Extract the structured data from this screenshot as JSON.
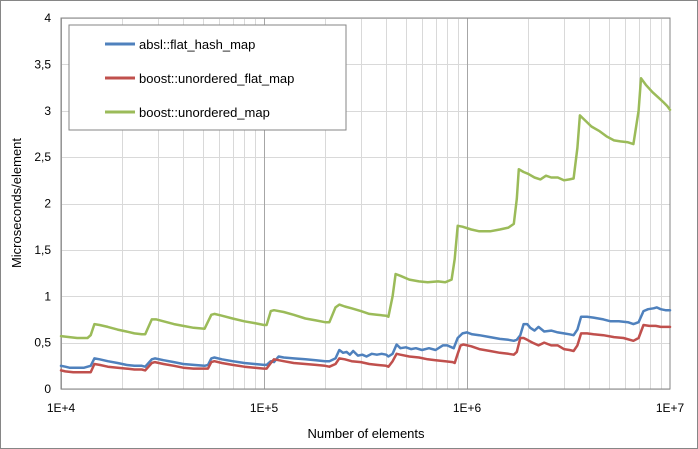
{
  "chart_data": {
    "type": "line",
    "title": "",
    "xlabel": "Number of elements",
    "ylabel": "Microseconds/element",
    "x_scale": "log",
    "xlim": [
      10000,
      10000000
    ],
    "ylim": [
      0,
      4
    ],
    "x_tick_labels": [
      "1E+4",
      "1E+5",
      "1E+6",
      "1E+7"
    ],
    "y_tick_labels": [
      "0",
      "0,5",
      "1",
      "1,5",
      "2",
      "2,5",
      "3",
      "3,5",
      "4"
    ],
    "grid": true,
    "legend_position": "top-left",
    "series": [
      {
        "name": "absl::flat_hash_map",
        "color": "#4f81bd",
        "points": [
          [
            10000,
            0.25
          ],
          [
            10500,
            0.24
          ],
          [
            11000,
            0.23
          ],
          [
            12000,
            0.23
          ],
          [
            13000,
            0.23
          ],
          [
            14000,
            0.25
          ],
          [
            14600,
            0.33
          ],
          [
            15500,
            0.32
          ],
          [
            17000,
            0.3
          ],
          [
            19000,
            0.28
          ],
          [
            21000,
            0.26
          ],
          [
            23000,
            0.25
          ],
          [
            25000,
            0.25
          ],
          [
            26000,
            0.24
          ],
          [
            28000,
            0.32
          ],
          [
            29000,
            0.33
          ],
          [
            32000,
            0.31
          ],
          [
            36000,
            0.29
          ],
          [
            40000,
            0.27
          ],
          [
            45000,
            0.26
          ],
          [
            51000,
            0.25
          ],
          [
            53000,
            0.26
          ],
          [
            55000,
            0.33
          ],
          [
            57000,
            0.34
          ],
          [
            62000,
            0.32
          ],
          [
            70000,
            0.3
          ],
          [
            80000,
            0.28
          ],
          [
            90000,
            0.27
          ],
          [
            100000,
            0.26
          ],
          [
            103000,
            0.26
          ],
          [
            108000,
            0.3
          ],
          [
            112000,
            0.29
          ],
          [
            118000,
            0.35
          ],
          [
            125000,
            0.34
          ],
          [
            140000,
            0.33
          ],
          [
            160000,
            0.32
          ],
          [
            180000,
            0.31
          ],
          [
            200000,
            0.3
          ],
          [
            210000,
            0.3
          ],
          [
            225000,
            0.33
          ],
          [
            235000,
            0.42
          ],
          [
            245000,
            0.39
          ],
          [
            255000,
            0.4
          ],
          [
            265000,
            0.37
          ],
          [
            275000,
            0.41
          ],
          [
            290000,
            0.36
          ],
          [
            305000,
            0.37
          ],
          [
            320000,
            0.35
          ],
          [
            340000,
            0.38
          ],
          [
            360000,
            0.37
          ],
          [
            380000,
            0.38
          ],
          [
            400000,
            0.37
          ],
          [
            410000,
            0.35
          ],
          [
            430000,
            0.38
          ],
          [
            450000,
            0.48
          ],
          [
            470000,
            0.44
          ],
          [
            500000,
            0.45
          ],
          [
            530000,
            0.43
          ],
          [
            560000,
            0.44
          ],
          [
            600000,
            0.42
          ],
          [
            650000,
            0.44
          ],
          [
            700000,
            0.42
          ],
          [
            760000,
            0.47
          ],
          [
            800000,
            0.47
          ],
          [
            840000,
            0.45
          ],
          [
            860000,
            0.44
          ],
          [
            900000,
            0.55
          ],
          [
            950000,
            0.6
          ],
          [
            1000000,
            0.61
          ],
          [
            1060000,
            0.59
          ],
          [
            1150000,
            0.58
          ],
          [
            1300000,
            0.56
          ],
          [
            1450000,
            0.54
          ],
          [
            1600000,
            0.53
          ],
          [
            1700000,
            0.52
          ],
          [
            1760000,
            0.53
          ],
          [
            1830000,
            0.58
          ],
          [
            1900000,
            0.7
          ],
          [
            1980000,
            0.7
          ],
          [
            2050000,
            0.66
          ],
          [
            2150000,
            0.63
          ],
          [
            2250000,
            0.67
          ],
          [
            2400000,
            0.62
          ],
          [
            2600000,
            0.63
          ],
          [
            2800000,
            0.61
          ],
          [
            3000000,
            0.6
          ],
          [
            3200000,
            0.59
          ],
          [
            3350000,
            0.58
          ],
          [
            3500000,
            0.64
          ],
          [
            3650000,
            0.78
          ],
          [
            3900000,
            0.78
          ],
          [
            4200000,
            0.77
          ],
          [
            4700000,
            0.75
          ],
          [
            5100000,
            0.73
          ],
          [
            5600000,
            0.73
          ],
          [
            6200000,
            0.72
          ],
          [
            6600000,
            0.7
          ],
          [
            7000000,
            0.72
          ],
          [
            7400000,
            0.84
          ],
          [
            7800000,
            0.86
          ],
          [
            8300000,
            0.87
          ],
          [
            8600000,
            0.88
          ],
          [
            9000000,
            0.86
          ],
          [
            9500000,
            0.85
          ],
          [
            10000000,
            0.85
          ]
        ]
      },
      {
        "name": "boost::unordered_flat_map",
        "color": "#c0504d",
        "points": [
          [
            10000,
            0.2
          ],
          [
            10500,
            0.19
          ],
          [
            11500,
            0.18
          ],
          [
            12500,
            0.18
          ],
          [
            14000,
            0.18
          ],
          [
            14600,
            0.27
          ],
          [
            15500,
            0.26
          ],
          [
            17000,
            0.24
          ],
          [
            19000,
            0.23
          ],
          [
            21000,
            0.22
          ],
          [
            23000,
            0.21
          ],
          [
            25000,
            0.21
          ],
          [
            26000,
            0.2
          ],
          [
            28000,
            0.28
          ],
          [
            29000,
            0.29
          ],
          [
            32000,
            0.27
          ],
          [
            36000,
            0.25
          ],
          [
            40000,
            0.23
          ],
          [
            45000,
            0.22
          ],
          [
            51000,
            0.22
          ],
          [
            53000,
            0.22
          ],
          [
            55000,
            0.29
          ],
          [
            57000,
            0.3
          ],
          [
            62000,
            0.28
          ],
          [
            70000,
            0.26
          ],
          [
            80000,
            0.24
          ],
          [
            90000,
            0.23
          ],
          [
            100000,
            0.22
          ],
          [
            103000,
            0.22
          ],
          [
            108000,
            0.28
          ],
          [
            112000,
            0.32
          ],
          [
            118000,
            0.31
          ],
          [
            125000,
            0.3
          ],
          [
            140000,
            0.28
          ],
          [
            160000,
            0.27
          ],
          [
            180000,
            0.26
          ],
          [
            200000,
            0.25
          ],
          [
            210000,
            0.24
          ],
          [
            225000,
            0.27
          ],
          [
            235000,
            0.33
          ],
          [
            250000,
            0.32
          ],
          [
            270000,
            0.3
          ],
          [
            300000,
            0.29
          ],
          [
            330000,
            0.27
          ],
          [
            360000,
            0.26
          ],
          [
            400000,
            0.25
          ],
          [
            410000,
            0.24
          ],
          [
            430000,
            0.3
          ],
          [
            450000,
            0.38
          ],
          [
            470000,
            0.37
          ],
          [
            520000,
            0.35
          ],
          [
            580000,
            0.34
          ],
          [
            640000,
            0.32
          ],
          [
            700000,
            0.31
          ],
          [
            780000,
            0.3
          ],
          [
            850000,
            0.29
          ],
          [
            870000,
            0.28
          ],
          [
            900000,
            0.38
          ],
          [
            930000,
            0.47
          ],
          [
            960000,
            0.48
          ],
          [
            1050000,
            0.46
          ],
          [
            1150000,
            0.43
          ],
          [
            1300000,
            0.41
          ],
          [
            1450000,
            0.39
          ],
          [
            1600000,
            0.38
          ],
          [
            1700000,
            0.37
          ],
          [
            1760000,
            0.4
          ],
          [
            1830000,
            0.55
          ],
          [
            1900000,
            0.55
          ],
          [
            1980000,
            0.53
          ],
          [
            2100000,
            0.5
          ],
          [
            2250000,
            0.47
          ],
          [
            2400000,
            0.5
          ],
          [
            2600000,
            0.47
          ],
          [
            2800000,
            0.47
          ],
          [
            3000000,
            0.43
          ],
          [
            3200000,
            0.42
          ],
          [
            3350000,
            0.41
          ],
          [
            3500000,
            0.47
          ],
          [
            3650000,
            0.6
          ],
          [
            3900000,
            0.6
          ],
          [
            4200000,
            0.59
          ],
          [
            4700000,
            0.58
          ],
          [
            5300000,
            0.56
          ],
          [
            5900000,
            0.55
          ],
          [
            6600000,
            0.52
          ],
          [
            7000000,
            0.55
          ],
          [
            7400000,
            0.69
          ],
          [
            7900000,
            0.68
          ],
          [
            8500000,
            0.68
          ],
          [
            9000000,
            0.67
          ],
          [
            9500000,
            0.67
          ],
          [
            10000000,
            0.67
          ]
        ]
      },
      {
        "name": "boost::unordered_map",
        "color": "#9bbb59",
        "points": [
          [
            10000,
            0.57
          ],
          [
            11000,
            0.56
          ],
          [
            12000,
            0.55
          ],
          [
            13500,
            0.55
          ],
          [
            14000,
            0.58
          ],
          [
            14600,
            0.7
          ],
          [
            15500,
            0.69
          ],
          [
            17000,
            0.67
          ],
          [
            19000,
            0.64
          ],
          [
            21000,
            0.62
          ],
          [
            23000,
            0.6
          ],
          [
            25000,
            0.59
          ],
          [
            26000,
            0.59
          ],
          [
            28000,
            0.75
          ],
          [
            29500,
            0.75
          ],
          [
            32000,
            0.73
          ],
          [
            36000,
            0.7
          ],
          [
            40000,
            0.68
          ],
          [
            45000,
            0.66
          ],
          [
            51000,
            0.65
          ],
          [
            55000,
            0.8
          ],
          [
            57000,
            0.81
          ],
          [
            62000,
            0.79
          ],
          [
            70000,
            0.76
          ],
          [
            80000,
            0.73
          ],
          [
            90000,
            0.71
          ],
          [
            100000,
            0.69
          ],
          [
            103000,
            0.69
          ],
          [
            108000,
            0.84
          ],
          [
            112000,
            0.85
          ],
          [
            125000,
            0.83
          ],
          [
            140000,
            0.8
          ],
          [
            160000,
            0.76
          ],
          [
            180000,
            0.74
          ],
          [
            200000,
            0.72
          ],
          [
            210000,
            0.72
          ],
          [
            225000,
            0.88
          ],
          [
            235000,
            0.91
          ],
          [
            250000,
            0.89
          ],
          [
            270000,
            0.87
          ],
          [
            300000,
            0.84
          ],
          [
            330000,
            0.81
          ],
          [
            360000,
            0.8
          ],
          [
            400000,
            0.79
          ],
          [
            410000,
            0.78
          ],
          [
            430000,
            1.0
          ],
          [
            445000,
            1.24
          ],
          [
            470000,
            1.22
          ],
          [
            520000,
            1.18
          ],
          [
            580000,
            1.16
          ],
          [
            640000,
            1.15
          ],
          [
            720000,
            1.16
          ],
          [
            780000,
            1.15
          ],
          [
            840000,
            1.18
          ],
          [
            870000,
            1.4
          ],
          [
            900000,
            1.76
          ],
          [
            950000,
            1.75
          ],
          [
            1050000,
            1.72
          ],
          [
            1150000,
            1.7
          ],
          [
            1300000,
            1.7
          ],
          [
            1450000,
            1.72
          ],
          [
            1600000,
            1.74
          ],
          [
            1700000,
            1.78
          ],
          [
            1760000,
            2.05
          ],
          [
            1800000,
            2.37
          ],
          [
            1900000,
            2.34
          ],
          [
            2000000,
            2.32
          ],
          [
            2150000,
            2.28
          ],
          [
            2300000,
            2.26
          ],
          [
            2450000,
            2.3
          ],
          [
            2600000,
            2.28
          ],
          [
            2800000,
            2.28
          ],
          [
            3000000,
            2.25
          ],
          [
            3200000,
            2.26
          ],
          [
            3350000,
            2.27
          ],
          [
            3500000,
            2.6
          ],
          [
            3600000,
            2.95
          ],
          [
            3800000,
            2.9
          ],
          [
            4100000,
            2.83
          ],
          [
            4500000,
            2.78
          ],
          [
            4900000,
            2.72
          ],
          [
            5300000,
            2.68
          ],
          [
            5700000,
            2.67
          ],
          [
            6200000,
            2.66
          ],
          [
            6600000,
            2.64
          ],
          [
            7000000,
            3.0
          ],
          [
            7200000,
            3.35
          ],
          [
            7600000,
            3.28
          ],
          [
            8200000,
            3.2
          ],
          [
            8800000,
            3.14
          ],
          [
            9300000,
            3.09
          ],
          [
            9700000,
            3.05
          ],
          [
            10000000,
            3.01
          ]
        ]
      }
    ]
  }
}
